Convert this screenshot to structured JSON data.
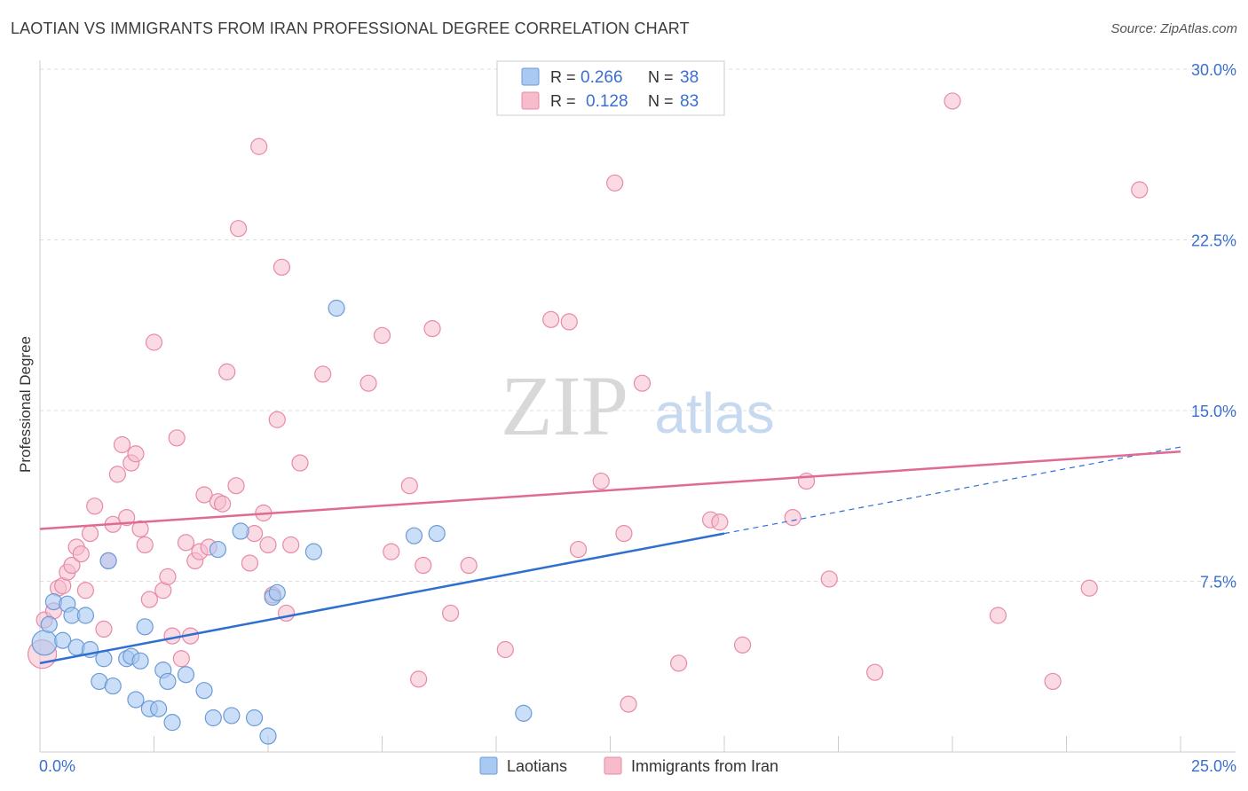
{
  "header": {
    "title": "LAOTIAN VS IMMIGRANTS FROM IRAN PROFESSIONAL DEGREE CORRELATION CHART",
    "source": "Source: ZipAtlas.com"
  },
  "legend_top": {
    "rows": [
      {
        "r_label": "R =",
        "r_value": "0.266",
        "n_label": "N =",
        "n_value": "38"
      },
      {
        "r_label": "R =",
        "r_value": "0.128",
        "n_label": "N =",
        "n_value": "83"
      }
    ]
  },
  "legend_bottom": {
    "items": [
      "Laotians",
      "Immigrants from Iran"
    ]
  },
  "watermark": {
    "zip": "ZIP",
    "atlas": "atlas"
  },
  "colors": {
    "laotian_fill": "#a9c8f2",
    "laotian_stroke": "#6b9bd6",
    "laotian_line": "#2e6fd0",
    "iran_fill": "#f6bccc",
    "iran_stroke": "#e88aa6",
    "iran_line": "#e06a92",
    "accent_text": "#3a6fd1",
    "grid": "#dddddd"
  },
  "chart_data": {
    "type": "scatter",
    "title": "LAOTIAN VS IMMIGRANTS FROM IRAN PROFESSIONAL DEGREE CORRELATION CHART",
    "xlabel": "",
    "ylabel": "Professional Degree",
    "xlim": [
      0,
      25
    ],
    "ylim": [
      0,
      30
    ],
    "x_tick_labels": [
      "0.0%",
      "25.0%"
    ],
    "y_tick_labels": [
      "7.5%",
      "15.0%",
      "22.5%",
      "30.0%"
    ],
    "y_ticks": [
      7.5,
      15,
      22.5,
      30
    ],
    "grid": true,
    "legend_position": "top-center",
    "series": [
      {
        "name": "Laotians",
        "r": 0.266,
        "n": 38,
        "trend": {
          "x0": 0,
          "y0": 3.9,
          "x1": 15,
          "y1": 9.6,
          "dashed_to_x": 25,
          "dashed_to_y": 13.4
        },
        "points": [
          [
            0.1,
            4.8
          ],
          [
            0.2,
            5.6
          ],
          [
            0.3,
            6.6
          ],
          [
            0.5,
            4.9
          ],
          [
            0.6,
            6.5
          ],
          [
            0.7,
            6.0
          ],
          [
            0.8,
            4.6
          ],
          [
            1.0,
            6.0
          ],
          [
            1.1,
            4.5
          ],
          [
            1.3,
            3.1
          ],
          [
            1.4,
            4.1
          ],
          [
            1.6,
            2.9
          ],
          [
            1.5,
            8.4
          ],
          [
            1.9,
            4.1
          ],
          [
            2.0,
            4.2
          ],
          [
            2.1,
            2.3
          ],
          [
            2.2,
            4.0
          ],
          [
            2.3,
            5.5
          ],
          [
            2.4,
            1.9
          ],
          [
            2.6,
            1.9
          ],
          [
            2.7,
            3.6
          ],
          [
            2.8,
            3.1
          ],
          [
            2.9,
            1.3
          ],
          [
            3.2,
            3.4
          ],
          [
            3.6,
            2.7
          ],
          [
            3.8,
            1.5
          ],
          [
            3.9,
            8.9
          ],
          [
            4.2,
            1.6
          ],
          [
            4.4,
            9.7
          ],
          [
            4.7,
            1.5
          ],
          [
            5.0,
            0.7
          ],
          [
            5.1,
            6.8
          ],
          [
            5.2,
            7.0
          ],
          [
            6.0,
            8.8
          ],
          [
            6.5,
            19.5
          ],
          [
            8.2,
            9.5
          ],
          [
            8.7,
            9.6
          ],
          [
            10.6,
            1.7
          ]
        ]
      },
      {
        "name": "Immigrants from Iran",
        "r": 0.128,
        "n": 83,
        "trend": {
          "x0": 0,
          "y0": 9.8,
          "x1": 25,
          "y1": 13.2
        },
        "points": [
          [
            0.05,
            4.3
          ],
          [
            0.1,
            5.8
          ],
          [
            0.3,
            6.2
          ],
          [
            0.4,
            7.2
          ],
          [
            0.5,
            7.3
          ],
          [
            0.6,
            7.9
          ],
          [
            0.7,
            8.2
          ],
          [
            0.8,
            9.0
          ],
          [
            0.9,
            8.7
          ],
          [
            1.0,
            7.1
          ],
          [
            1.1,
            9.6
          ],
          [
            1.2,
            10.8
          ],
          [
            1.4,
            5.4
          ],
          [
            1.5,
            8.4
          ],
          [
            1.6,
            10.0
          ],
          [
            1.7,
            12.2
          ],
          [
            1.8,
            13.5
          ],
          [
            1.9,
            10.3
          ],
          [
            2.0,
            12.7
          ],
          [
            2.1,
            13.1
          ],
          [
            2.2,
            9.8
          ],
          [
            2.3,
            9.1
          ],
          [
            2.4,
            6.7
          ],
          [
            2.5,
            18.0
          ],
          [
            2.7,
            7.1
          ],
          [
            2.8,
            7.7
          ],
          [
            2.9,
            5.1
          ],
          [
            3.0,
            13.8
          ],
          [
            3.1,
            4.1
          ],
          [
            3.2,
            9.2
          ],
          [
            3.3,
            5.1
          ],
          [
            3.4,
            8.4
          ],
          [
            3.5,
            8.8
          ],
          [
            3.6,
            11.3
          ],
          [
            3.7,
            9.0
          ],
          [
            3.9,
            11.0
          ],
          [
            4.0,
            10.9
          ],
          [
            4.1,
            16.7
          ],
          [
            4.3,
            11.7
          ],
          [
            4.35,
            23.0
          ],
          [
            4.6,
            8.3
          ],
          [
            4.7,
            9.6
          ],
          [
            4.8,
            26.6
          ],
          [
            4.9,
            10.5
          ],
          [
            5.0,
            9.1
          ],
          [
            5.1,
            6.9
          ],
          [
            5.2,
            14.6
          ],
          [
            5.3,
            21.3
          ],
          [
            5.4,
            6.1
          ],
          [
            5.5,
            9.1
          ],
          [
            5.7,
            12.7
          ],
          [
            6.2,
            16.6
          ],
          [
            7.2,
            16.2
          ],
          [
            7.5,
            18.3
          ],
          [
            7.7,
            8.8
          ],
          [
            8.1,
            11.7
          ],
          [
            8.3,
            3.2
          ],
          [
            8.4,
            8.2
          ],
          [
            8.6,
            18.6
          ],
          [
            9.0,
            6.1
          ],
          [
            9.4,
            8.2
          ],
          [
            10.2,
            4.5
          ],
          [
            11.2,
            19.0
          ],
          [
            11.6,
            18.9
          ],
          [
            11.8,
            8.9
          ],
          [
            12.3,
            11.9
          ],
          [
            12.6,
            25.0
          ],
          [
            12.8,
            9.6
          ],
          [
            12.9,
            2.1
          ],
          [
            13.2,
            16.2
          ],
          [
            14.0,
            3.9
          ],
          [
            14.7,
            10.2
          ],
          [
            14.9,
            10.1
          ],
          [
            15.4,
            4.7
          ],
          [
            16.5,
            10.3
          ],
          [
            16.8,
            11.9
          ],
          [
            17.3,
            7.6
          ],
          [
            18.3,
            3.5
          ],
          [
            20.0,
            28.6
          ],
          [
            21.0,
            6.0
          ],
          [
            22.2,
            3.1
          ],
          [
            23.0,
            7.2
          ],
          [
            24.1,
            24.7
          ]
        ]
      }
    ]
  }
}
